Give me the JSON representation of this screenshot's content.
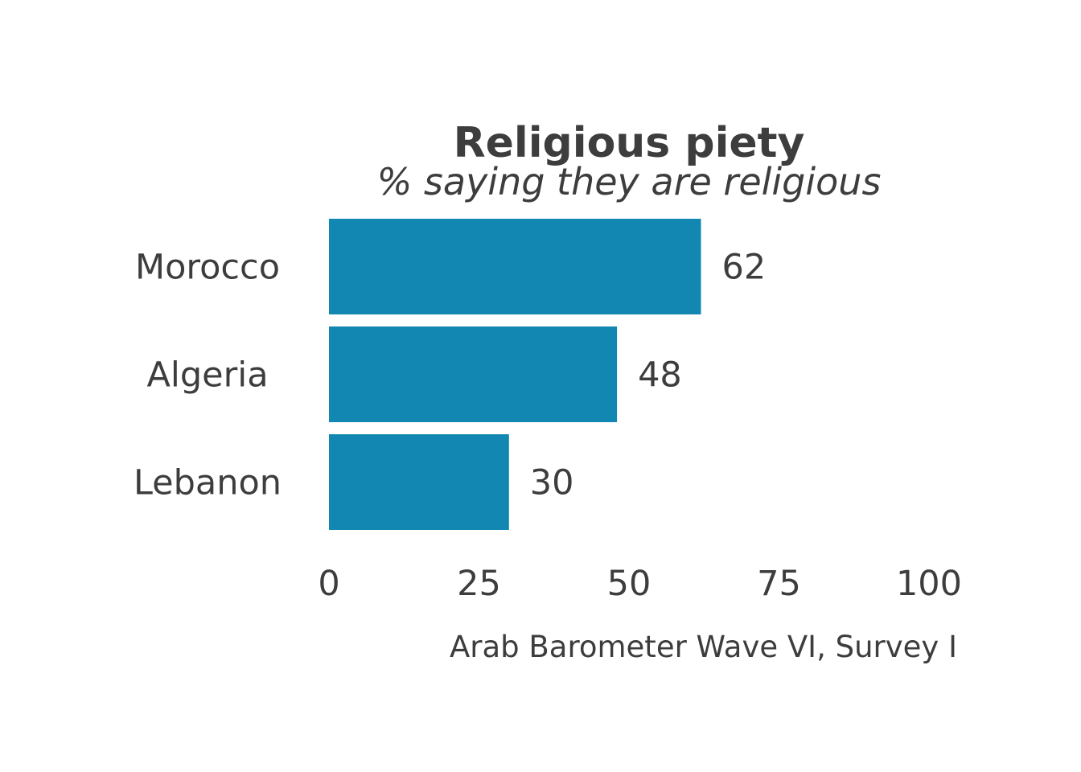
{
  "chart_data": {
    "type": "bar",
    "orientation": "horizontal",
    "title": "Religious piety",
    "subtitle": "% saying they are religious",
    "caption": "Arab Barometer Wave VI, Survey I",
    "categories": [
      "Morocco",
      "Algeria",
      "Lebanon"
    ],
    "values": [
      62,
      48,
      30
    ],
    "value_labels": [
      "62",
      "48",
      "30"
    ],
    "xlim": [
      0,
      100
    ],
    "xticks": [
      0,
      25,
      50,
      75,
      100
    ],
    "xtick_labels": [
      "0",
      "25",
      "50",
      "75",
      "100"
    ],
    "grid": false,
    "legend": "none",
    "colors": {
      "bar": "#1287b1",
      "text": "#3d3d3d",
      "background": "#ffffff"
    }
  }
}
